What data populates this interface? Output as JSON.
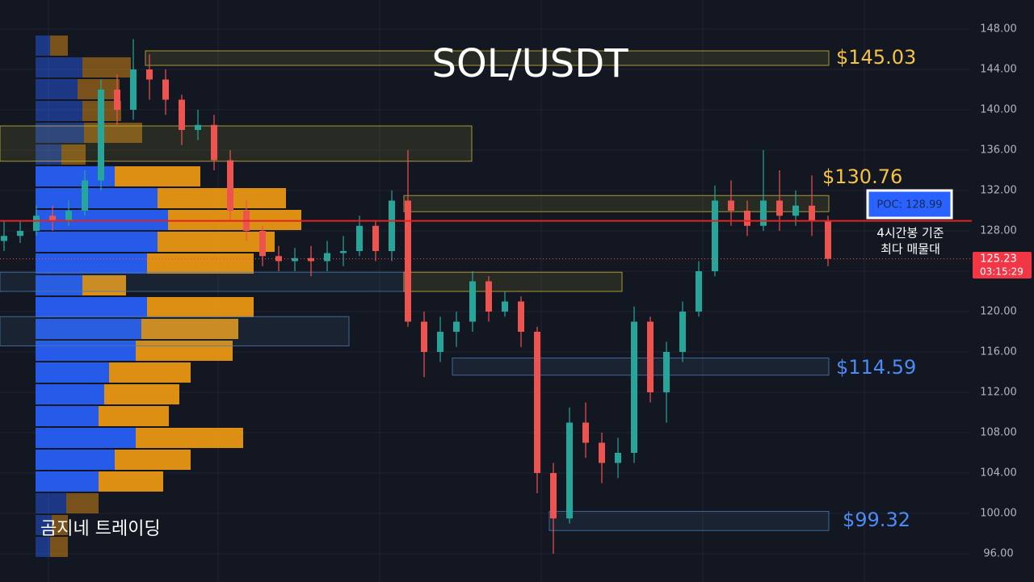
{
  "chart_data": {
    "type": "candlestick",
    "title": "SOL/USDT",
    "ylim": [
      93.2,
      150.88
    ],
    "yticks": [
      {
        "value": 96,
        "label": "96.00"
      },
      {
        "value": 100,
        "label": "100.00"
      },
      {
        "value": 104,
        "label": "104.00"
      },
      {
        "value": 108,
        "label": "108.00"
      },
      {
        "value": 112,
        "label": "112.00"
      },
      {
        "value": 116,
        "label": "116.00"
      },
      {
        "value": 120,
        "label": "120.00"
      },
      {
        "value": 124,
        "label": "124.00"
      },
      {
        "value": 128,
        "label": "128.00"
      },
      {
        "value": 132,
        "label": "132.00"
      },
      {
        "value": 136,
        "label": "136.00"
      },
      {
        "value": 140,
        "label": "140.00"
      },
      {
        "value": 144,
        "label": "144.00"
      },
      {
        "value": 148,
        "label": "148.00"
      }
    ],
    "grid": true,
    "up_color": "#26a69a",
    "down_color": "#ef5350",
    "open": [
      127,
      127.5,
      128,
      129.5,
      129,
      130,
      133,
      142,
      140,
      144,
      143,
      141,
      138,
      138.5,
      135,
      130,
      128,
      125.5,
      125,
      125.3,
      125,
      125.8,
      126,
      128.5,
      126,
      131,
      119,
      116,
      118,
      119,
      123,
      120,
      121,
      118,
      104,
      99.5,
      109,
      107,
      105,
      106,
      119,
      112,
      116,
      120,
      124,
      131,
      130,
      128.5,
      131,
      129.5,
      130.5,
      129
    ],
    "high": [
      129,
      129,
      130.5,
      130.5,
      131,
      134,
      143,
      143.5,
      147,
      145.5,
      144,
      141.5,
      140,
      139.5,
      136,
      131,
      128.5,
      126.5,
      126.3,
      126.5,
      127,
      127.5,
      129.5,
      129,
      132,
      136,
      120,
      119.5,
      120,
      124,
      123.5,
      122,
      121.5,
      118.5,
      105,
      110.5,
      111,
      108,
      107.5,
      120.5,
      119.5,
      117,
      121,
      125,
      132.5,
      133,
      131,
      136,
      134,
      132,
      133.5,
      129.5
    ],
    "low": [
      126,
      126.8,
      127.5,
      128,
      128.5,
      129.5,
      132,
      138.5,
      139,
      141,
      139.5,
      136.5,
      137,
      134,
      129,
      127,
      124.5,
      124,
      124,
      123.5,
      124,
      124.5,
      125.5,
      125,
      125,
      118.5,
      113.5,
      115,
      116.5,
      118,
      119,
      119.5,
      116.5,
      102,
      96,
      99,
      105.5,
      103,
      103.5,
      105,
      111,
      109,
      115,
      119.5,
      123.5,
      128.5,
      127.5,
      128,
      128,
      128.5,
      127.5,
      124.5
    ],
    "close": [
      127.5,
      128,
      129.5,
      129,
      130,
      133,
      142,
      140,
      144,
      143,
      141,
      138,
      138.5,
      135,
      130,
      128,
      125.5,
      125,
      125.3,
      125,
      125.8,
      126,
      128.5,
      126,
      131,
      119,
      116,
      118,
      119,
      123,
      120,
      121,
      118,
      104,
      99.5,
      109,
      107,
      105,
      106,
      119,
      112,
      116,
      120,
      124,
      131,
      130,
      128.5,
      131,
      129.5,
      130.5,
      129,
      125.23
    ],
    "profile": {
      "top": 147.36,
      "step": 2.16,
      "buy_color": "#2962ff",
      "sell_color": "#f39c12",
      "value_area": [
        6,
        20
      ],
      "buy": [
        18,
        58,
        52,
        58,
        60,
        32,
        98,
        151,
        164,
        151,
        138,
        58,
        138,
        131,
        124,
        91,
        85,
        78,
        124,
        98,
        78,
        38,
        20,
        18
      ],
      "sell": [
        22,
        60,
        52,
        48,
        72,
        30,
        106,
        159,
        165,
        145,
        132,
        54,
        132,
        120,
        120,
        101,
        93,
        87,
        133,
        94,
        80,
        40,
        20,
        22
      ]
    },
    "zones": [
      {
        "low": 144.4,
        "high": 145.84,
        "color": "#c9b53a"
      },
      {
        "low": 134.9,
        "high": 138.4,
        "color": "#c9b53a"
      },
      {
        "low": 129.9,
        "high": 131.5,
        "color": "#c9b53a"
      },
      {
        "low": 122,
        "high": 123.9,
        "color": "#4a78b0"
      },
      {
        "low": 122,
        "high": 123.9,
        "color": "#c9b53a"
      },
      {
        "low": 116.6,
        "high": 119.5,
        "color": "#4a78b0"
      },
      {
        "low": 113.7,
        "high": 115.4,
        "color": "#4a78b0"
      },
      {
        "low": 98.3,
        "high": 100.2,
        "color": "#4a78b0"
      }
    ],
    "annotations": [
      {
        "text": "$145.03",
        "color": "#f5c242"
      },
      {
        "text": "$130.76",
        "color": "#f5c242"
      },
      {
        "text": "$114.59",
        "color": "#4a8cf5"
      },
      {
        "text": "$99.32",
        "color": "#4a8cf5"
      }
    ],
    "poc": {
      "value": 128.99,
      "label": "POC: 128.99",
      "color": "#e02424"
    },
    "note": [
      "4시간봉 기준",
      "최다 매물대"
    ],
    "last_price": {
      "value": 125.23,
      "countdown": "03:15:29"
    },
    "watermark": "곰지네 트레이딩"
  }
}
